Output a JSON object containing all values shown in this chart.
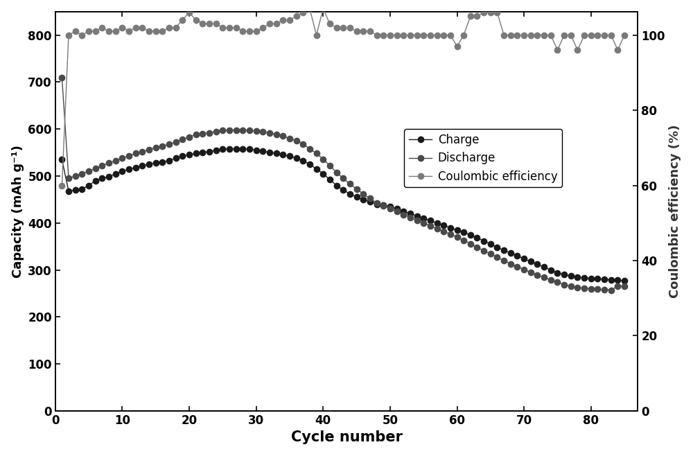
{
  "charge_x": [
    1,
    2,
    3,
    4,
    5,
    6,
    7,
    8,
    9,
    10,
    11,
    12,
    13,
    14,
    15,
    16,
    17,
    18,
    19,
    20,
    21,
    22,
    23,
    24,
    25,
    26,
    27,
    28,
    29,
    30,
    31,
    32,
    33,
    34,
    35,
    36,
    37,
    38,
    39,
    40,
    41,
    42,
    43,
    44,
    45,
    46,
    47,
    48,
    49,
    50,
    51,
    52,
    53,
    54,
    55,
    56,
    57,
    58,
    59,
    60,
    61,
    62,
    63,
    64,
    65,
    66,
    67,
    68,
    69,
    70,
    71,
    72,
    73,
    74,
    75,
    76,
    77,
    78,
    79,
    80,
    81,
    82,
    83,
    84,
    85
  ],
  "charge_y": [
    535,
    468,
    470,
    472,
    480,
    490,
    495,
    498,
    505,
    510,
    515,
    518,
    522,
    525,
    528,
    530,
    533,
    538,
    542,
    545,
    548,
    550,
    552,
    555,
    557,
    558,
    558,
    558,
    557,
    555,
    553,
    550,
    548,
    545,
    542,
    538,
    532,
    525,
    515,
    505,
    492,
    480,
    470,
    462,
    455,
    450,
    445,
    440,
    438,
    435,
    430,
    425,
    420,
    415,
    410,
    405,
    400,
    395,
    390,
    385,
    380,
    375,
    368,
    362,
    355,
    348,
    342,
    336,
    330,
    324,
    318,
    312,
    306,
    300,
    294,
    290,
    287,
    284,
    283,
    282,
    281,
    280,
    279,
    278,
    277
  ],
  "discharge_x": [
    1,
    2,
    3,
    4,
    5,
    6,
    7,
    8,
    9,
    10,
    11,
    12,
    13,
    14,
    15,
    16,
    17,
    18,
    19,
    20,
    21,
    22,
    23,
    24,
    25,
    26,
    27,
    28,
    29,
    30,
    31,
    32,
    33,
    34,
    35,
    36,
    37,
    38,
    39,
    40,
    41,
    42,
    43,
    44,
    45,
    46,
    47,
    48,
    49,
    50,
    51,
    52,
    53,
    54,
    55,
    56,
    57,
    58,
    59,
    60,
    61,
    62,
    63,
    64,
    65,
    66,
    67,
    68,
    69,
    70,
    71,
    72,
    73,
    74,
    75,
    76,
    77,
    78,
    79,
    80,
    81,
    82,
    83,
    84,
    85
  ],
  "discharge_y": [
    710,
    495,
    500,
    505,
    510,
    516,
    522,
    528,
    532,
    538,
    543,
    548,
    552,
    556,
    560,
    563,
    568,
    572,
    578,
    583,
    588,
    590,
    592,
    595,
    597,
    598,
    598,
    598,
    597,
    596,
    594,
    592,
    588,
    585,
    580,
    575,
    568,
    558,
    548,
    536,
    522,
    508,
    495,
    483,
    472,
    462,
    452,
    443,
    437,
    430,
    424,
    418,
    412,
    406,
    400,
    394,
    388,
    382,
    376,
    370,
    363,
    356,
    348,
    341,
    334,
    327,
    320,
    313,
    307,
    301,
    295,
    289,
    284,
    279,
    274,
    269,
    265,
    263,
    261,
    260,
    259,
    258,
    257,
    266,
    265
  ],
  "ce_x": [
    1,
    2,
    3,
    4,
    5,
    6,
    7,
    8,
    9,
    10,
    11,
    12,
    13,
    14,
    15,
    16,
    17,
    18,
    19,
    20,
    21,
    22,
    23,
    24,
    25,
    26,
    27,
    28,
    29,
    30,
    31,
    32,
    33,
    34,
    35,
    36,
    37,
    38,
    39,
    40,
    41,
    42,
    43,
    44,
    45,
    46,
    47,
    48,
    49,
    50,
    51,
    52,
    53,
    54,
    55,
    56,
    57,
    58,
    59,
    60,
    61,
    62,
    63,
    64,
    65,
    66,
    67,
    68,
    69,
    70,
    71,
    72,
    73,
    74,
    75,
    76,
    77,
    78,
    79,
    80,
    81,
    82,
    83,
    84,
    85
  ],
  "ce_y": [
    60,
    100,
    101,
    100,
    101,
    101,
    102,
    101,
    101,
    102,
    101,
    102,
    102,
    101,
    101,
    101,
    102,
    102,
    104,
    106,
    104,
    103,
    103,
    103,
    102,
    102,
    102,
    101,
    101,
    101,
    102,
    103,
    103,
    104,
    104,
    105,
    106,
    107,
    100,
    107,
    103,
    102,
    102,
    102,
    101,
    101,
    101,
    100,
    100,
    100,
    100,
    100,
    100,
    100,
    100,
    100,
    100,
    100,
    100,
    97,
    100,
    105,
    105,
    106,
    106,
    106,
    100,
    100,
    100,
    100,
    100,
    100,
    100,
    100,
    96,
    100,
    100,
    96,
    100,
    100,
    100,
    100,
    100,
    96,
    100
  ],
  "charge_color": "#1a1a1a",
  "discharge_color": "#4a4a4a",
  "ce_color": "#7a7a7a",
  "ylabel_left": "Capacity (mAh g⁻¹)",
  "ylabel_right": "Coulombic efficiency (%)",
  "xlabel": "Cycle number",
  "ylim_left": [
    0,
    850
  ],
  "ylim_right": [
    0,
    106.25
  ],
  "xlim": [
    0,
    87
  ],
  "yticks_left": [
    0,
    100,
    200,
    300,
    400,
    500,
    600,
    700,
    800
  ],
  "yticks_right": [
    0,
    20,
    40,
    60,
    80,
    100
  ],
  "xticks": [
    0,
    10,
    20,
    30,
    40,
    50,
    60,
    70,
    80
  ],
  "legend_labels": [
    "Charge",
    "Discharge",
    "Coulombic efficiency"
  ],
  "marker_size": 6,
  "line_width": 1.0
}
